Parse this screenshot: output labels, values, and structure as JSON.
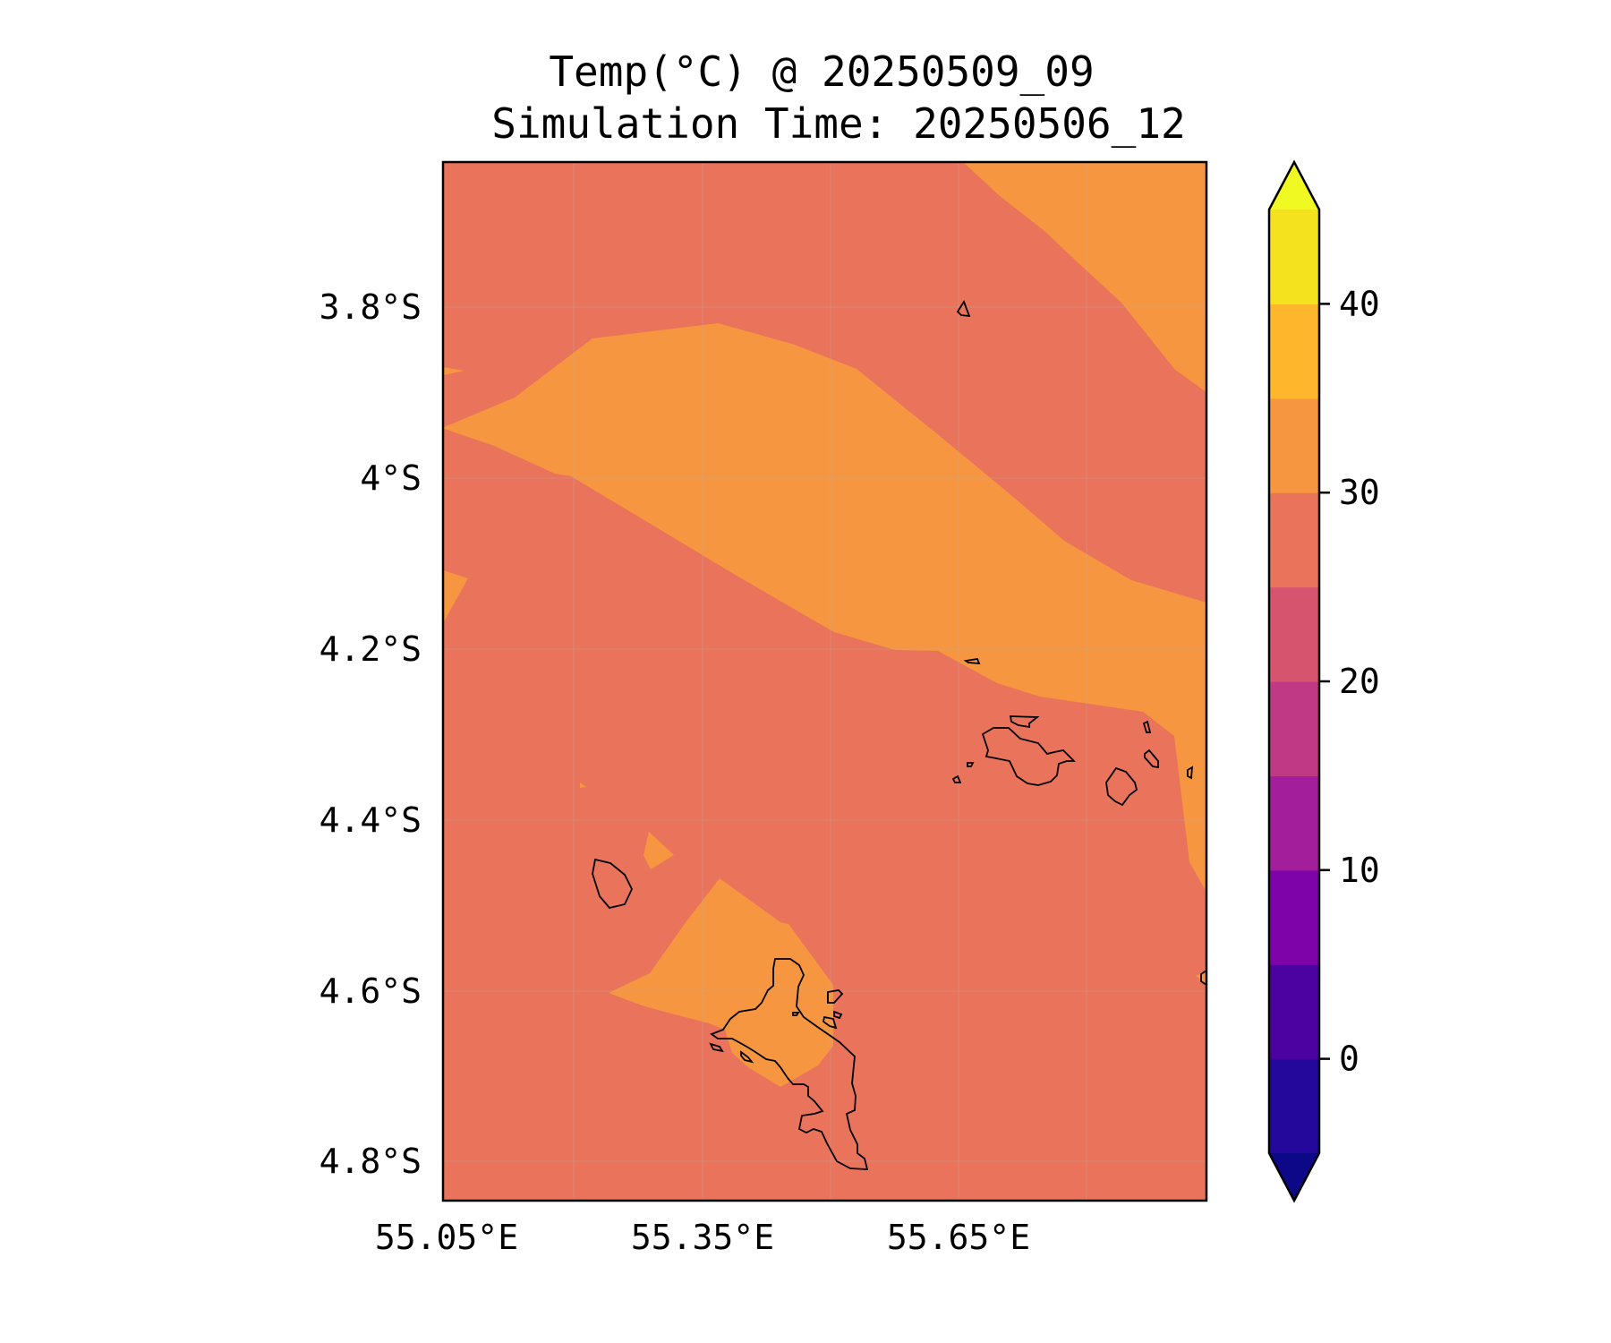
{
  "title": {
    "line1": "Temp(°C) @ 20250509_09",
    "line2": "Simulation Time: 20250506_12"
  },
  "map": {
    "x_ticks": [
      "55.05°E",
      "55.35°E",
      "55.65°E"
    ],
    "y_ticks": [
      "3.8°S",
      "4°S",
      "4.2°S",
      "4.4°S",
      "4.6°S",
      "4.8°S"
    ],
    "background_color": "#ea735b",
    "warm_band_color": "#f79640",
    "coastline_color": "#000000"
  },
  "colorbar": {
    "ticks": [
      "0",
      "10",
      "20",
      "30",
      "40"
    ],
    "levels": [
      -5,
      0,
      5,
      10,
      15,
      20,
      25,
      30,
      35,
      40,
      45
    ],
    "colors": [
      "#24079b",
      "#4c02a1",
      "#7e03a8",
      "#a31e9a",
      "#bf3984",
      "#d6546d",
      "#ea735b",
      "#f79640",
      "#feb72d",
      "#f4e21f"
    ],
    "under_color": "#0d0887",
    "over_color": "#f0f921"
  },
  "chart_data": {
    "type": "heatmap",
    "variable": "Temp(°C)",
    "valid_time": "20250509_09",
    "simulation_time": "20250506_12",
    "field_ranges_degC": {
      "background": [
        25,
        30
      ],
      "warm_bands": [
        30,
        35
      ]
    },
    "colorbar_range": [
      -5,
      45
    ],
    "colorbar_extend": "both"
  }
}
